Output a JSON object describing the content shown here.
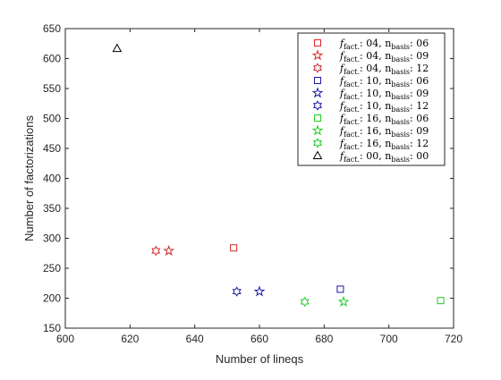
{
  "chart_data": {
    "type": "scatter",
    "xlabel": "Number of lineqs",
    "ylabel": "Number of factorizations",
    "xlim": [
      600,
      720
    ],
    "ylim": [
      150,
      650
    ],
    "xticks": [
      600,
      620,
      640,
      660,
      680,
      700,
      720
    ],
    "yticks": [
      150,
      200,
      250,
      300,
      350,
      400,
      450,
      500,
      550,
      600,
      650
    ],
    "grid": false,
    "legend_position": "top-right",
    "series": [
      {
        "name": "f_fact.: 04, n_basis: 06",
        "fact": "04",
        "basis": "06",
        "marker": "square",
        "color": "#d62728",
        "points": [
          [
            652,
            284
          ]
        ]
      },
      {
        "name": "f_fact.: 04, n_basis: 09",
        "fact": "04",
        "basis": "09",
        "marker": "star",
        "color": "#d62728",
        "points": [
          [
            632,
            279
          ]
        ]
      },
      {
        "name": "f_fact.: 04, n_basis: 12",
        "fact": "04",
        "basis": "12",
        "marker": "hexagram",
        "color": "#d62728",
        "points": [
          [
            628,
            279
          ]
        ]
      },
      {
        "name": "f_fact.: 10, n_basis: 06",
        "fact": "10",
        "basis": "06",
        "marker": "square",
        "color": "#1a1aa6",
        "points": [
          [
            685,
            215
          ]
        ]
      },
      {
        "name": "f_fact.: 10, n_basis: 09",
        "fact": "10",
        "basis": "09",
        "marker": "star",
        "color": "#1a1aa6",
        "points": [
          [
            660,
            211
          ]
        ]
      },
      {
        "name": "f_fact.: 10, n_basis: 12",
        "fact": "10",
        "basis": "12",
        "marker": "hexagram",
        "color": "#1a1aa6",
        "points": [
          [
            653,
            211
          ]
        ]
      },
      {
        "name": "f_fact.: 16, n_basis: 06",
        "fact": "16",
        "basis": "06",
        "marker": "square",
        "color": "#22cc22",
        "points": [
          [
            716,
            196
          ]
        ]
      },
      {
        "name": "f_fact.: 16, n_basis: 09",
        "fact": "16",
        "basis": "09",
        "marker": "star",
        "color": "#22cc22",
        "points": [
          [
            686,
            194
          ]
        ]
      },
      {
        "name": "f_fact.: 16, n_basis: 12",
        "fact": "16",
        "basis": "12",
        "marker": "hexagram",
        "color": "#22cc22",
        "points": [
          [
            674,
            194
          ]
        ]
      },
      {
        "name": "f_fact.: 00, n_basis: 00",
        "fact": "00",
        "basis": "00",
        "marker": "triangle",
        "color": "#000000",
        "points": [
          [
            616,
            617
          ]
        ]
      }
    ]
  }
}
